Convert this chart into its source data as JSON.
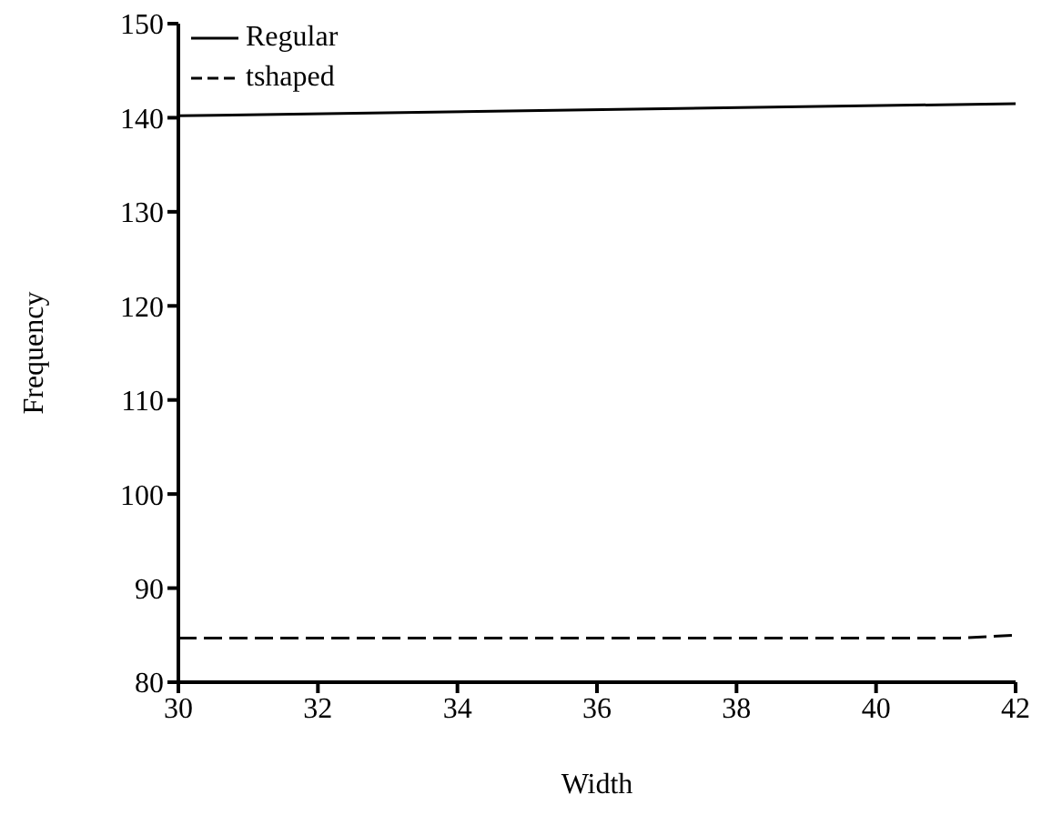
{
  "chart_data": {
    "type": "line",
    "xlabel": "Width",
    "ylabel": "Frequency",
    "xlim": [
      30,
      42
    ],
    "xticks": [
      30,
      32,
      34,
      36,
      38,
      40,
      42
    ],
    "ylim": [
      80,
      150
    ],
    "yticks": [
      80,
      90,
      100,
      110,
      120,
      130,
      140,
      150
    ],
    "grid": false,
    "legend": "top left",
    "marker": "none",
    "series": [
      {
        "name": "Regular",
        "color": "#000000",
        "line_style": "solid",
        "x": [
          30,
          42
        ],
        "values": [
          140.2,
          141.5
        ]
      },
      {
        "name": "tshaped",
        "color": "#000000",
        "line_style": "dashed",
        "x": [
          30,
          41.2,
          42
        ],
        "values": [
          84.7,
          84.7,
          85.0
        ]
      }
    ]
  }
}
